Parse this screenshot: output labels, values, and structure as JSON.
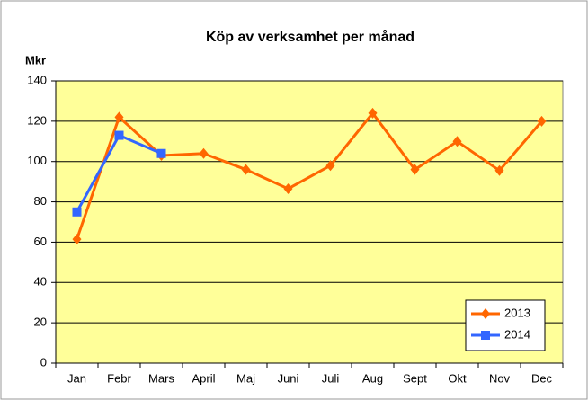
{
  "chart_data": {
    "type": "line",
    "title": "Köp av verksamhet per månad",
    "y_label": "Mkr",
    "categories": [
      "Jan",
      "Febr",
      "Mars",
      "April",
      "Maj",
      "Juni",
      "Juli",
      "Aug",
      "Sept",
      "Okt",
      "Nov",
      "Dec"
    ],
    "series": [
      {
        "name": "2013",
        "color": "#ff6600",
        "marker": "diamond",
        "values": [
          61.5,
          122,
          103,
          104,
          96,
          86.5,
          98,
          124,
          96,
          110,
          95.5,
          120
        ]
      },
      {
        "name": "2014",
        "color": "#3366ff",
        "marker": "square",
        "values": [
          75,
          113,
          104,
          null,
          null,
          null,
          null,
          null,
          null,
          null,
          null,
          null
        ]
      }
    ],
    "ylim": [
      0,
      140
    ],
    "yticks": [
      0,
      20,
      40,
      60,
      80,
      100,
      120,
      140
    ],
    "grid": true,
    "legend": "bottom-right",
    "plot_background": "#ffff99"
  }
}
